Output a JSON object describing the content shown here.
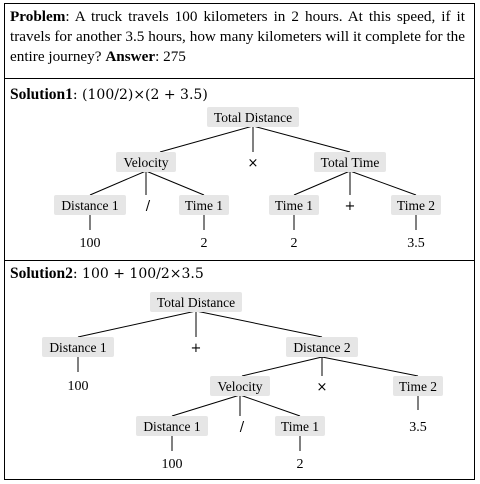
{
  "problem": {
    "label": "Problem",
    "text": ": A truck travels 100 kilometers in 2 hours. At this speed, if it travels for another 3.5 hours, how many kilometers will it complete for the entire journey? ",
    "answer_label": "Answer",
    "answer_value": ": 275"
  },
  "solution1": {
    "label": "Solution1",
    "formula": ": (100/2)×(2 + 3.5)",
    "root": "Total Distance",
    "velocity": "Velocity",
    "times": "×",
    "total_time": "Total Time",
    "distance1": "Distance 1",
    "divide": "/",
    "time1": "Time 1",
    "time1b": "Time 1",
    "plus": "+",
    "time2": "Time 2",
    "v100": "100",
    "v2a": "2",
    "v2b": "2",
    "v35": "3.5"
  },
  "solution2": {
    "label": "Solution2",
    "formula": ":  100 + 100/2×3.5",
    "root": "Total Distance",
    "distance1": "Distance 1",
    "plus": "+",
    "distance2": "Distance 2",
    "v100": "100",
    "velocity": "Velocity",
    "times": "×",
    "time2": "Time 2",
    "distance1b": "Distance 1",
    "divide": "/",
    "time1": "Time 1",
    "v35": "3.5",
    "v100b": "100",
    "v2": "2"
  }
}
